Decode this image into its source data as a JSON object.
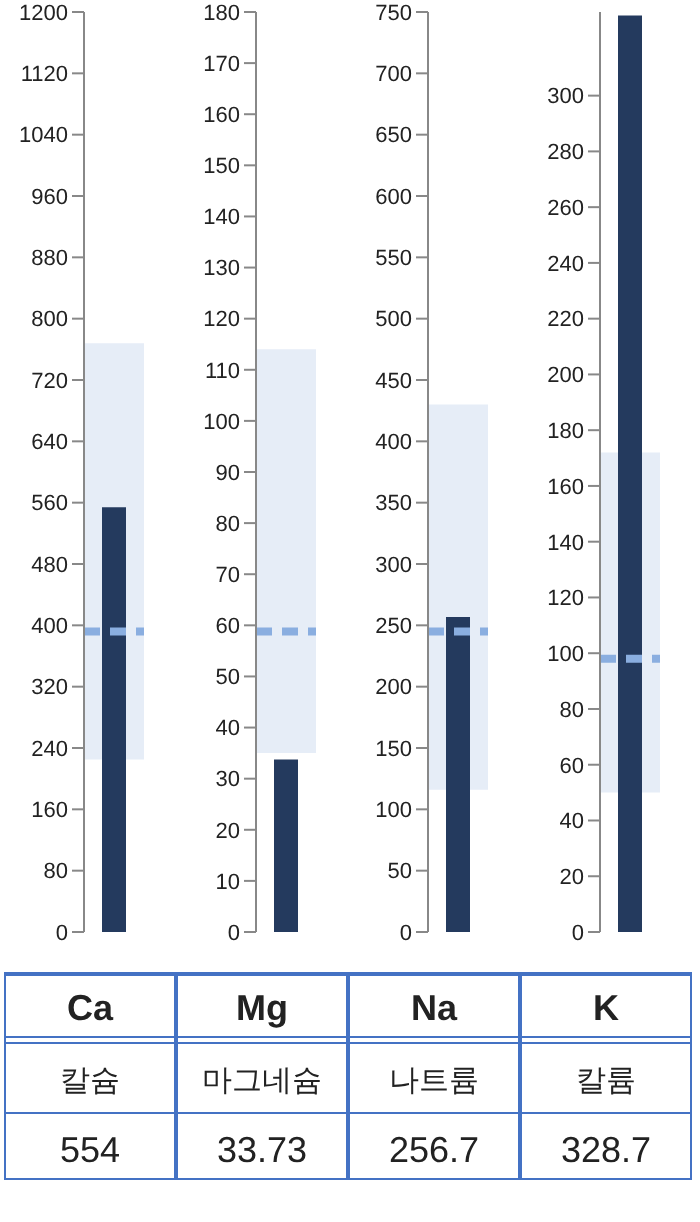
{
  "chart_data": [
    {
      "type": "bar",
      "categories": [
        "Ca"
      ],
      "xlabel": "칼슘",
      "values": [
        554
      ],
      "color": "#243a5e",
      "annotations": [
        "554"
      ],
      "ylim": [
        0,
        1200
      ],
      "yticks": [
        0,
        80,
        160,
        240,
        320,
        400,
        480,
        560,
        640,
        720,
        800,
        880,
        960,
        1040,
        1120,
        1200
      ],
      "grid": false,
      "bands": [
        {
          "axis": "y",
          "from": 225,
          "to": 768,
          "color": "#e6edf7"
        }
      ],
      "ref_lines": [
        {
          "axis": "y",
          "value": 392,
          "color": "#8aaee0",
          "line_style": "dashed"
        }
      ]
    },
    {
      "type": "bar",
      "categories": [
        "Mg"
      ],
      "xlabel": "마그네슘",
      "values": [
        33.73
      ],
      "color": "#243a5e",
      "annotations": [
        "33.73"
      ],
      "ylim": [
        0,
        180
      ],
      "yticks": [
        0,
        10,
        20,
        30,
        40,
        50,
        60,
        70,
        80,
        90,
        100,
        110,
        120,
        130,
        140,
        150,
        160,
        170,
        180
      ],
      "grid": false,
      "bands": [
        {
          "axis": "y",
          "from": 35,
          "to": 114,
          "color": "#e6edf7"
        }
      ],
      "ref_lines": [
        {
          "axis": "y",
          "value": 58.8,
          "color": "#8aaee0",
          "line_style": "dashed"
        }
      ]
    },
    {
      "type": "bar",
      "categories": [
        "Na"
      ],
      "xlabel": "나트륨",
      "values": [
        256.7
      ],
      "color": "#243a5e",
      "annotations": [
        "256.7"
      ],
      "ylim": [
        0,
        750
      ],
      "yticks": [
        0,
        50,
        100,
        150,
        200,
        250,
        300,
        350,
        400,
        450,
        500,
        550,
        600,
        650,
        700,
        750
      ],
      "grid": false,
      "bands": [
        {
          "axis": "y",
          "from": 116,
          "to": 430,
          "color": "#e6edf7"
        }
      ],
      "ref_lines": [
        {
          "axis": "y",
          "value": 245,
          "color": "#8aaee0",
          "line_style": "dashed"
        }
      ]
    },
    {
      "type": "bar",
      "categories": [
        "K"
      ],
      "xlabel": "칼륨",
      "values": [
        328.7
      ],
      "color": "#243a5e",
      "annotations": [
        "328.7"
      ],
      "ylim": [
        0,
        330
      ],
      "yticks": [
        0,
        20,
        40,
        60,
        80,
        100,
        120,
        140,
        160,
        180,
        200,
        220,
        240,
        260,
        280,
        300
      ],
      "grid": false,
      "bands": [
        {
          "axis": "y",
          "from": 50,
          "to": 172,
          "color": "#e6edf7"
        }
      ],
      "ref_lines": [
        {
          "axis": "y",
          "value": 98,
          "color": "#8aaee0",
          "line_style": "dashed"
        }
      ]
    }
  ]
}
